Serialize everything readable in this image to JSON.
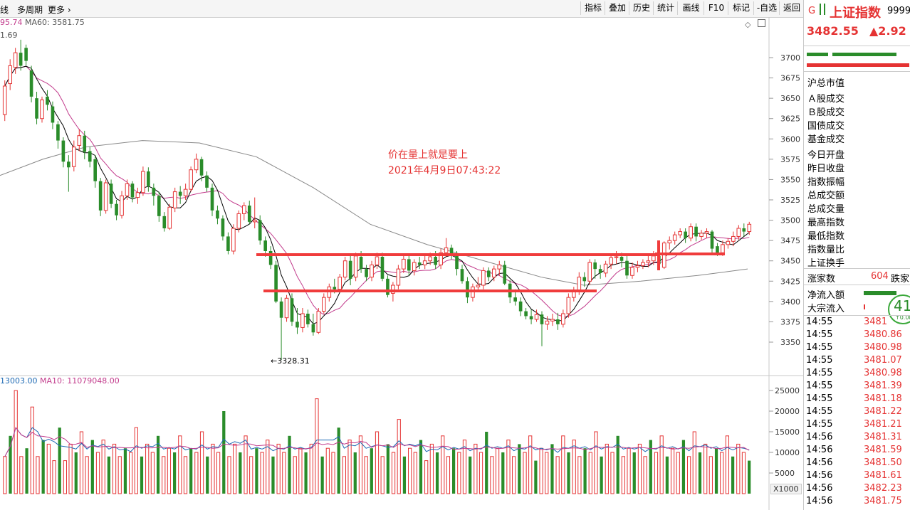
{
  "topbar": {
    "left_items": [
      "线",
      "多周期",
      "更多 ›"
    ],
    "buttons": [
      "指标",
      "叠加",
      "历史",
      "统计",
      "画线",
      "F10",
      "标记",
      "-自选",
      "返回"
    ]
  },
  "ma_legend": {
    "ma_a": "95.74",
    "ma60": "MA60: 3581.75",
    "top_value": "1.69"
  },
  "vol_legend": {
    "vol": "13003.00",
    "ma10": "MA10: 11079048.00"
  },
  "annotation": {
    "line1": "价在量上就是要上",
    "line2": "2021年4月9日07:43:22"
  },
  "low_label": "←3328.31",
  "x1000": "X1000",
  "colors": {
    "up": "#e53333",
    "down": "#2a8c2a",
    "ma5": "#000000",
    "ma10": "#c23b8c",
    "ma60": "#888888",
    "hline": "#f03c3c",
    "vol_ma_blue": "#1e6ab4"
  },
  "right_panel": {
    "g_icon": "G",
    "index_name": "上证指数",
    "code": "9999",
    "price": "3482.55",
    "change": "▲2.92",
    "fields": [
      "沪总市值",
      "Ａ股成交",
      "Ｂ股成交",
      "国债成交",
      "基金成交",
      "今日开盘",
      "昨日收盘",
      "指数振幅",
      "总成交额",
      "总成交量",
      "最高指数",
      "最低指数",
      "指数量比",
      "上证换手"
    ],
    "up_count_label": "涨家数",
    "up_count": "604",
    "down_label": "跌家",
    "netflow_label": "净流入额",
    "bigflow_label": "大宗流入",
    "badge_value": "41",
    "badge_sub": "↑0.08",
    "ticks": [
      {
        "t": "14:55",
        "p": "3481"
      },
      {
        "t": "14:55",
        "p": "3480.86"
      },
      {
        "t": "14:55",
        "p": "3480.98"
      },
      {
        "t": "14:55",
        "p": "3481.07"
      },
      {
        "t": "14:55",
        "p": "3480.98"
      },
      {
        "t": "14:55",
        "p": "3481.39"
      },
      {
        "t": "14:55",
        "p": "3481.18"
      },
      {
        "t": "14:55",
        "p": "3481.22"
      },
      {
        "t": "14:55",
        "p": "3481.21"
      },
      {
        "t": "14:56",
        "p": "3481.31"
      },
      {
        "t": "14:56",
        "p": "3481.59"
      },
      {
        "t": "14:56",
        "p": "3481.50"
      },
      {
        "t": "14:56",
        "p": "3481.61"
      },
      {
        "t": "14:56",
        "p": "3482.23"
      },
      {
        "t": "14:56",
        "p": "3481.75"
      }
    ]
  },
  "chart_data": [
    {
      "type": "candlestick",
      "y_ticks": [
        3350,
        3375,
        3400,
        3425,
        3450,
        3475,
        3500,
        3525,
        3550,
        3575,
        3600,
        3625,
        3650,
        3675,
        3700
      ],
      "ylim": [
        3312,
        3730
      ],
      "candles": [
        [
          3630,
          3665,
          3622,
          3672
        ],
        [
          3668,
          3690,
          3660,
          3698
        ],
        [
          3688,
          3706,
          3680,
          3712
        ],
        [
          3706,
          3690,
          3684,
          3722
        ],
        [
          3712,
          3696,
          3690,
          3716
        ],
        [
          3684,
          3652,
          3645,
          3690
        ],
        [
          3650,
          3625,
          3618,
          3658
        ],
        [
          3625,
          3648,
          3620,
          3652
        ],
        [
          3652,
          3642,
          3635,
          3660
        ],
        [
          3640,
          3620,
          3612,
          3646
        ],
        [
          3618,
          3598,
          3588,
          3622
        ],
        [
          3598,
          3572,
          3565,
          3602
        ],
        [
          3572,
          3565,
          3535,
          3580
        ],
        [
          3566,
          3590,
          3560,
          3598
        ],
        [
          3592,
          3604,
          3585,
          3612
        ],
        [
          3604,
          3584,
          3575,
          3610
        ],
        [
          3585,
          3572,
          3565,
          3590
        ],
        [
          3575,
          3548,
          3540,
          3580
        ],
        [
          3548,
          3512,
          3505,
          3552
        ],
        [
          3512,
          3546,
          3508,
          3550
        ],
        [
          3545,
          3520,
          3515,
          3550
        ],
        [
          3520,
          3506,
          3500,
          3525
        ],
        [
          3506,
          3530,
          3502,
          3536
        ],
        [
          3530,
          3545,
          3525,
          3550
        ],
        [
          3545,
          3528,
          3522,
          3548
        ],
        [
          3528,
          3534,
          3520,
          3540
        ],
        [
          3534,
          3560,
          3530,
          3566
        ],
        [
          3560,
          3542,
          3535,
          3565
        ],
        [
          3540,
          3530,
          3518,
          3545
        ],
        [
          3530,
          3505,
          3498,
          3535
        ],
        [
          3505,
          3490,
          3486,
          3510
        ],
        [
          3490,
          3516,
          3488,
          3520
        ],
        [
          3515,
          3535,
          3510,
          3540
        ],
        [
          3535,
          3530,
          3520,
          3542
        ],
        [
          3530,
          3538,
          3525,
          3545
        ],
        [
          3538,
          3562,
          3535,
          3566
        ],
        [
          3562,
          3575,
          3558,
          3582
        ],
        [
          3575,
          3555,
          3548,
          3578
        ],
        [
          3555,
          3540,
          3535,
          3560
        ],
        [
          3540,
          3512,
          3505,
          3545
        ],
        [
          3512,
          3502,
          3495,
          3518
        ],
        [
          3502,
          3480,
          3475,
          3506
        ],
        [
          3480,
          3462,
          3458,
          3485
        ],
        [
          3462,
          3490,
          3458,
          3495
        ],
        [
          3490,
          3508,
          3485,
          3512
        ],
        [
          3508,
          3518,
          3500,
          3522
        ],
        [
          3518,
          3498,
          3495,
          3524
        ],
        [
          3498,
          3500,
          3490,
          3528
        ],
        [
          3500,
          3475,
          3470,
          3506
        ],
        [
          3475,
          3462,
          3455,
          3480
        ],
        [
          3462,
          3445,
          3440,
          3468
        ],
        [
          3445,
          3400,
          3398,
          3450
        ],
        [
          3400,
          3380,
          3328,
          3405
        ],
        [
          3380,
          3404,
          3375,
          3408
        ],
        [
          3404,
          3375,
          3370,
          3410
        ],
        [
          3375,
          3368,
          3360,
          3392
        ],
        [
          3368,
          3385,
          3362,
          3392
        ],
        [
          3385,
          3372,
          3368,
          3390
        ],
        [
          3372,
          3362,
          3358,
          3385
        ],
        [
          3362,
          3388,
          3360,
          3392
        ],
        [
          3388,
          3405,
          3385,
          3410
        ],
        [
          3405,
          3418,
          3400,
          3422
        ],
        [
          3418,
          3415,
          3410,
          3428
        ],
        [
          3415,
          3430,
          3412,
          3434
        ],
        [
          3430,
          3450,
          3426,
          3455
        ],
        [
          3450,
          3428,
          3420,
          3456
        ],
        [
          3430,
          3456,
          3425,
          3460
        ],
        [
          3455,
          3440,
          3435,
          3462
        ],
        [
          3440,
          3430,
          3425,
          3445
        ],
        [
          3430,
          3445,
          3425,
          3450
        ],
        [
          3445,
          3455,
          3440,
          3460
        ],
        [
          3455,
          3428,
          3425,
          3460
        ],
        [
          3428,
          3408,
          3405,
          3432
        ],
        [
          3410,
          3420,
          3400,
          3424
        ],
        [
          3420,
          3440,
          3415,
          3445
        ],
        [
          3440,
          3452,
          3435,
          3456
        ],
        [
          3452,
          3438,
          3432,
          3456
        ],
        [
          3438,
          3448,
          3432,
          3452
        ],
        [
          3448,
          3445,
          3440,
          3455
        ],
        [
          3445,
          3450,
          3440,
          3456
        ],
        [
          3450,
          3455,
          3445,
          3460
        ],
        [
          3455,
          3445,
          3440,
          3462
        ],
        [
          3445,
          3460,
          3440,
          3465
        ],
        [
          3460,
          3466,
          3455,
          3478
        ],
        [
          3466,
          3458,
          3452,
          3470
        ],
        [
          3458,
          3440,
          3432,
          3462
        ],
        [
          3440,
          3425,
          3422,
          3445
        ],
        [
          3425,
          3405,
          3398,
          3430
        ],
        [
          3405,
          3418,
          3400,
          3422
        ],
        [
          3418,
          3420,
          3412,
          3430
        ],
        [
          3420,
          3438,
          3415,
          3442
        ],
        [
          3438,
          3430,
          3425,
          3442
        ],
        [
          3430,
          3440,
          3425,
          3444
        ],
        [
          3440,
          3445,
          3432,
          3450
        ],
        [
          3445,
          3422,
          3420,
          3450
        ],
        [
          3422,
          3405,
          3398,
          3426
        ],
        [
          3405,
          3400,
          3395,
          3415
        ],
        [
          3400,
          3388,
          3382,
          3405
        ],
        [
          3388,
          3382,
          3378,
          3392
        ],
        [
          3382,
          3378,
          3372,
          3390
        ],
        [
          3378,
          3384,
          3375,
          3390
        ],
        [
          3384,
          3372,
          3345,
          3388
        ],
        [
          3372,
          3376,
          3365,
          3382
        ],
        [
          3376,
          3378,
          3370,
          3385
        ],
        [
          3378,
          3372,
          3365,
          3386
        ],
        [
          3372,
          3385,
          3368,
          3390
        ],
        [
          3385,
          3405,
          3380,
          3410
        ],
        [
          3405,
          3412,
          3400,
          3418
        ],
        [
          3412,
          3430,
          3408,
          3436
        ],
        [
          3430,
          3425,
          3418,
          3436
        ],
        [
          3425,
          3448,
          3420,
          3452
        ],
        [
          3448,
          3440,
          3428,
          3452
        ],
        [
          3440,
          3435,
          3428,
          3445
        ],
        [
          3435,
          3446,
          3430,
          3450
        ],
        [
          3446,
          3454,
          3440,
          3458
        ],
        [
          3454,
          3455,
          3446,
          3462
        ],
        [
          3455,
          3450,
          3442,
          3460
        ],
        [
          3450,
          3432,
          3428,
          3456
        ],
        [
          3432,
          3442,
          3428,
          3448
        ],
        [
          3442,
          3444,
          3436,
          3450
        ],
        [
          3444,
          3448,
          3440,
          3452
        ],
        [
          3448,
          3450,
          3442,
          3458
        ],
        [
          3450,
          3456,
          3445,
          3462
        ],
        [
          3456,
          3446,
          3440,
          3460
        ],
        [
          3442,
          3472,
          3440,
          3474
        ],
        [
          3472,
          3475,
          3464,
          3480
        ],
        [
          3475,
          3482,
          3470,
          3486
        ],
        [
          3482,
          3486,
          3478,
          3490
        ],
        [
          3486,
          3478,
          3472,
          3490
        ],
        [
          3478,
          3492,
          3474,
          3496
        ],
        [
          3492,
          3480,
          3474,
          3496
        ],
        [
          3480,
          3484,
          3476,
          3488
        ],
        [
          3484,
          3486,
          3478,
          3490
        ],
        [
          3486,
          3465,
          3460,
          3488
        ],
        [
          3468,
          3460,
          3456,
          3472
        ],
        [
          3460,
          3470,
          3456,
          3475
        ],
        [
          3470,
          3474,
          3465,
          3478
        ],
        [
          3474,
          3480,
          3468,
          3486
        ],
        [
          3480,
          3490,
          3476,
          3494
        ],
        [
          3490,
          3486,
          3480,
          3496
        ],
        [
          3486,
          3495,
          3482,
          3498
        ]
      ],
      "ma60": [
        [
          0,
          3555
        ],
        [
          60,
          3575
        ],
        [
          120,
          3590
        ],
        [
          200,
          3598
        ],
        [
          280,
          3595
        ],
        [
          360,
          3578
        ],
        [
          440,
          3540
        ],
        [
          520,
          3495
        ],
        [
          600,
          3470
        ],
        [
          680,
          3450
        ],
        [
          760,
          3430
        ],
        [
          820,
          3420
        ],
        [
          900,
          3425
        ],
        [
          980,
          3432
        ],
        [
          1050,
          3440
        ]
      ]
    },
    {
      "type": "bar",
      "y_ticks": [
        5000,
        10000,
        15000,
        20000,
        25000
      ],
      "ylim": [
        0,
        27800
      ],
      "values": [
        9,
        14,
        25,
        9,
        11,
        21,
        9,
        13,
        12,
        8,
        16,
        8,
        12,
        10,
        15,
        9,
        13,
        10,
        13,
        9,
        12,
        9,
        11,
        10,
        16,
        9,
        12,
        10,
        14,
        9,
        11,
        10,
        14,
        9,
        11,
        10,
        15,
        9,
        12,
        10,
        20,
        9,
        12,
        10,
        14,
        9,
        11,
        10,
        13,
        9,
        12,
        10,
        14,
        9,
        11,
        10,
        12,
        23,
        9,
        11,
        10,
        16,
        9,
        13,
        10,
        14,
        9,
        11,
        15,
        9,
        12,
        10,
        18,
        9,
        11,
        10,
        13,
        8,
        12,
        10,
        14,
        9,
        11,
        10,
        13,
        9,
        12,
        10,
        15,
        9,
        11,
        10,
        13,
        9,
        12,
        10,
        14,
        8,
        11,
        10,
        12,
        9,
        14,
        10,
        13,
        9,
        11,
        10,
        15,
        9,
        12,
        10,
        14,
        9,
        11,
        10,
        12,
        9,
        13,
        10,
        14,
        9,
        11,
        10,
        13,
        9,
        15,
        10,
        12,
        9,
        11,
        10,
        14,
        9,
        12,
        10,
        8
      ],
      "ma_lines": [
        "#1e6ab4",
        "#c23b8c"
      ]
    }
  ]
}
